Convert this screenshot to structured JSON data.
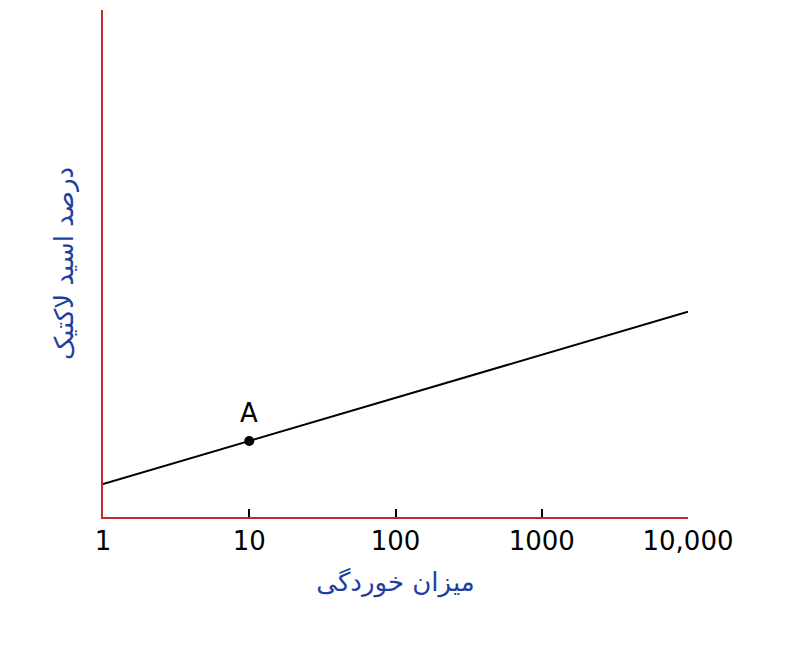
{
  "chart_data": {
    "type": "line",
    "x_label": "میزان خوردگی",
    "y_label": "درصد اسید لاکتیک",
    "x": [
      1,
      10,
      10000
    ],
    "values": [
      0.65,
      1.5,
      4.05
    ],
    "color": "#000000",
    "log": "x",
    "xlim": [
      1,
      10000
    ],
    "xticks": [
      1,
      10,
      100,
      1000,
      {
        "value": 10000,
        "label": "10,000"
      }
    ],
    "ylim": [
      0,
      10
    ],
    "tick_labels": "x",
    "grid": false,
    "annotations": [
      {
        "text": "A",
        "x": 10,
        "y": 1.5
      }
    ]
  }
}
